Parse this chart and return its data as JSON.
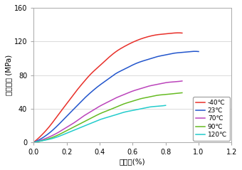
{
  "title_y": "引張強さ (MPa)",
  "title_x": "ひずみ(%)",
  "xlim": [
    0.0,
    1.2
  ],
  "ylim": [
    0,
    160
  ],
  "xticks": [
    0.0,
    0.2,
    0.4,
    0.6,
    0.8,
    1.0,
    1.2
  ],
  "yticks": [
    0,
    40,
    80,
    120,
    160
  ],
  "series": [
    {
      "label": "-40℃",
      "color": "#e8302a",
      "x": [
        0.0,
        0.05,
        0.1,
        0.15,
        0.2,
        0.25,
        0.3,
        0.35,
        0.4,
        0.45,
        0.5,
        0.55,
        0.6,
        0.65,
        0.7,
        0.75,
        0.8,
        0.85,
        0.9
      ],
      "y": [
        0,
        9,
        20,
        33,
        46,
        59,
        71,
        82,
        91,
        100,
        108,
        114,
        119,
        123,
        126,
        128,
        129,
        130,
        130
      ]
    },
    {
      "label": "23℃",
      "color": "#2255cc",
      "x": [
        0.0,
        0.05,
        0.1,
        0.15,
        0.2,
        0.25,
        0.3,
        0.35,
        0.4,
        0.45,
        0.5,
        0.55,
        0.6,
        0.65,
        0.7,
        0.75,
        0.8,
        0.85,
        0.9,
        0.95,
        1.0
      ],
      "y": [
        0,
        5,
        12,
        21,
        31,
        41,
        51,
        60,
        68,
        75,
        82,
        87,
        92,
        96,
        99,
        102,
        104,
        106,
        107,
        108,
        108
      ]
    },
    {
      "label": "70℃",
      "color": "#bb44bb",
      "x": [
        0.0,
        0.05,
        0.1,
        0.15,
        0.2,
        0.25,
        0.3,
        0.35,
        0.4,
        0.45,
        0.5,
        0.55,
        0.6,
        0.65,
        0.7,
        0.75,
        0.8,
        0.85,
        0.9
      ],
      "y": [
        0,
        3,
        7,
        12,
        18,
        24,
        31,
        37,
        43,
        48,
        53,
        57,
        61,
        64,
        67,
        69,
        71,
        72,
        73
      ]
    },
    {
      "label": "90℃",
      "color": "#66bb22",
      "x": [
        0.0,
        0.05,
        0.1,
        0.15,
        0.2,
        0.25,
        0.3,
        0.35,
        0.4,
        0.45,
        0.5,
        0.55,
        0.6,
        0.65,
        0.7,
        0.75,
        0.8,
        0.85,
        0.9
      ],
      "y": [
        0,
        2,
        5,
        9,
        14,
        19,
        24,
        29,
        34,
        38,
        42,
        46,
        49,
        52,
        54,
        56,
        57,
        58,
        59
      ]
    },
    {
      "label": "120℃",
      "color": "#22cccc",
      "x": [
        0.0,
        0.05,
        0.1,
        0.15,
        0.2,
        0.25,
        0.3,
        0.35,
        0.4,
        0.45,
        0.5,
        0.55,
        0.6,
        0.65,
        0.7,
        0.75,
        0.8
      ],
      "y": [
        0,
        2,
        4,
        7,
        11,
        15,
        19,
        23,
        27,
        30,
        33,
        36,
        38,
        40,
        42,
        43,
        44
      ]
    }
  ],
  "background_color": "#ffffff",
  "grid_color": "#cccccc",
  "legend_fontsize": 6.5,
  "axis_fontsize": 7.5,
  "tick_fontsize": 7.0
}
